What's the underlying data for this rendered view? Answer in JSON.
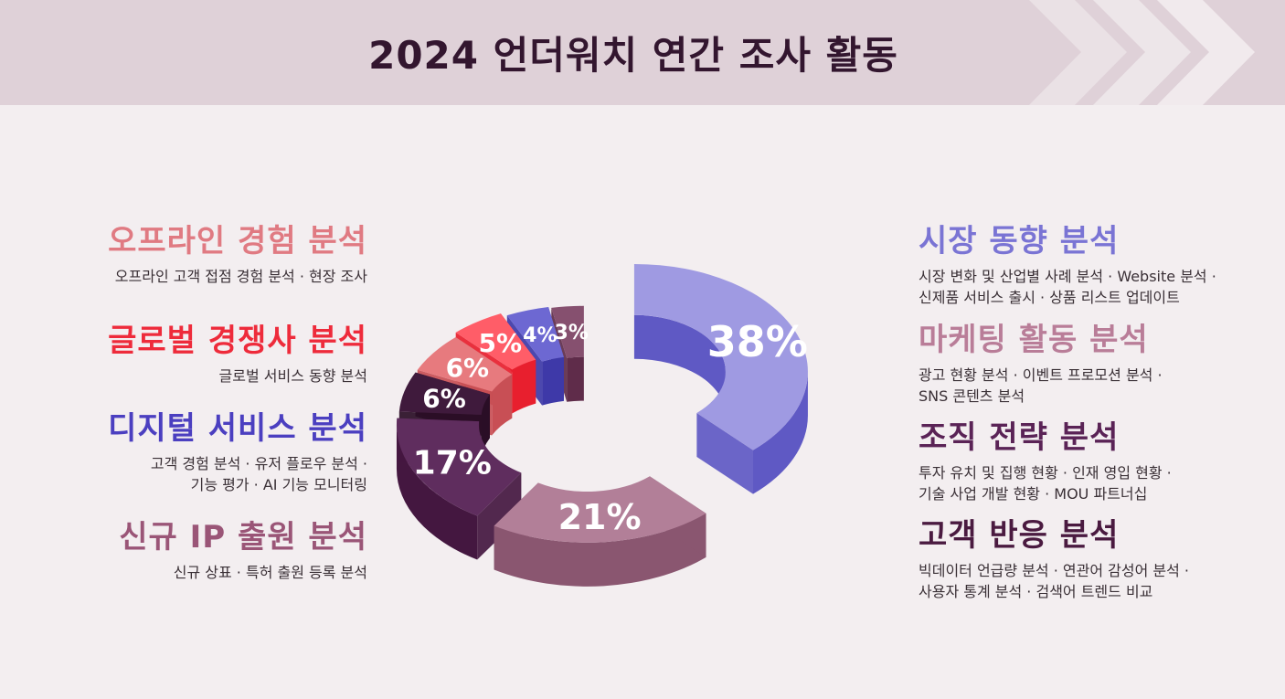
{
  "header": {
    "title": "2024 언더워치 연간 조사 활동"
  },
  "left_items": [
    {
      "title": "오프라인 경험 분석",
      "color": "#e07a82",
      "desc": [
        "오프라인 고객 접점 경험 분석 · 현장 조사"
      ]
    },
    {
      "title": "글로벌 경쟁사 분석",
      "color": "#ee2b3b",
      "desc": [
        "글로벌 서비스 동향 분석"
      ]
    },
    {
      "title": "디지털 서비스 분석",
      "color": "#4b3fc0",
      "desc": [
        "고객 경험 분석 · 유저 플로우 분석 ·",
        "기능 평가 · AI 기능 모니터링"
      ]
    },
    {
      "title": "신규 IP 출원 분석",
      "color": "#9a5577",
      "desc": [
        "신규 상표 · 특허 출원 등록 분석"
      ]
    }
  ],
  "right_items": [
    {
      "title": "시장 동향 분석",
      "color": "#7a74d4",
      "desc": [
        "시장 변화 및 산업별 사례 분석 · Website 분석 ·",
        "신제품 서비스 출시 · 상품 리스트 업데이트"
      ]
    },
    {
      "title": "마케팅 활동 분석",
      "color": "#b97d98",
      "desc": [
        "광고 현황 분석 · 이벤트 프로모션 분석 ·",
        "SNS 콘텐츠 분석"
      ]
    },
    {
      "title": "조직 전략 분석",
      "color": "#5a2356",
      "desc": [
        "투자 유치 및 집행 현황 · 인재 영입 현황 ·",
        "기술 사업 개발 현황 · MOU 파트너십"
      ]
    },
    {
      "title": "고객 반응 분석",
      "color": "#4a1a40",
      "desc": [
        "빅데이터 언급량 분석 · 연관어 감성어 분석 ·",
        "사용자 통계 분석 · 검색어 트렌드 비교"
      ]
    }
  ],
  "chart_data": {
    "type": "pie",
    "variant": "donut-3d",
    "values": [
      38,
      21,
      17,
      6,
      6,
      5,
      4,
      3
    ],
    "labels": [
      "38%",
      "21%",
      "17%",
      "6%",
      "6%",
      "5%",
      "4%",
      "3%"
    ],
    "colors": [
      "#9f9ae2",
      "#b27f98",
      "#5f2d5e",
      "#3f1a3c",
      "#e77a7e",
      "#ff5d68",
      "#6d68d2",
      "#86506f"
    ],
    "side_colors": [
      "#5f59c4",
      "#8a5670",
      "#441740",
      "#2a0e26",
      "#c84f55",
      "#e81f2e",
      "#3e39a8",
      "#5f2c4a"
    ]
  }
}
